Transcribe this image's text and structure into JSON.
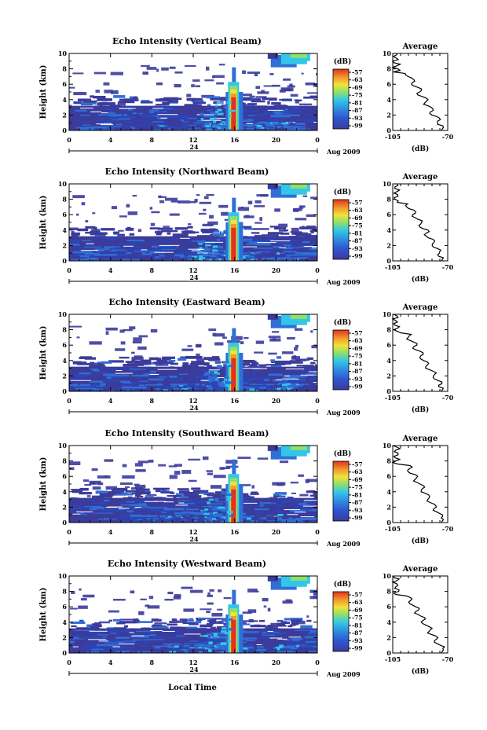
{
  "figure": {
    "xlabel": "Local Time",
    "date_label": "Aug 2009",
    "day_label": "24",
    "colorbar_unit": "(dB)",
    "avg_title": "Average",
    "avg_xlabel": "(dB)",
    "colors": {
      "low": "#3b3b9c",
      "blue": "#2f6fd6",
      "cyan": "#33c6e8",
      "green": "#8fe06a",
      "yellow": "#f2e23a",
      "orange": "#f39a2c",
      "red": "#e0321e"
    }
  },
  "chart_data": [
    {
      "type": "heatmap",
      "title": "Echo Intensity (Vertical Beam)",
      "ylabel": "Height (km)",
      "xlabel": "Local Time",
      "x_ticks": [
        "0",
        "4",
        "8",
        "12",
        "16",
        "20",
        "0"
      ],
      "y_ticks": [
        "0",
        "2",
        "4",
        "6",
        "8",
        "10"
      ],
      "xlim": [
        0,
        24
      ],
      "ylim": [
        0,
        10
      ],
      "colorbar_ticks": [
        "-57",
        "-63",
        "-69",
        "-75",
        "-81",
        "-87",
        "-93",
        "-99"
      ],
      "profile": {
        "title": "Average",
        "xlabel": "(dB)",
        "x_ticks": [
          "-105",
          "-70"
        ],
        "y_ticks": [
          "0",
          "2",
          "4",
          "6",
          "8",
          "10"
        ],
        "xlim": [
          -105,
          -70
        ],
        "ylim": [
          0,
          10
        ]
      }
    },
    {
      "type": "heatmap",
      "title": "Echo Intensity (Northward Beam)",
      "ylabel": "Height (km)",
      "xlabel": "Local Time",
      "x_ticks": [
        "0",
        "4",
        "8",
        "12",
        "16",
        "20",
        "0"
      ],
      "y_ticks": [
        "0",
        "2",
        "4",
        "6",
        "8",
        "10"
      ],
      "xlim": [
        0,
        24
      ],
      "ylim": [
        0,
        10
      ],
      "colorbar_ticks": [
        "-57",
        "-63",
        "-69",
        "-75",
        "-81",
        "-87",
        "-93",
        "-99"
      ],
      "profile": {
        "title": "Average",
        "xlabel": "(dB)",
        "x_ticks": [
          "-105",
          "-70"
        ],
        "y_ticks": [
          "0",
          "2",
          "4",
          "6",
          "8",
          "10"
        ],
        "xlim": [
          -105,
          -70
        ],
        "ylim": [
          0,
          10
        ]
      }
    },
    {
      "type": "heatmap",
      "title": "Echo Intensity (Eastward Beam)",
      "ylabel": "Height (km)",
      "xlabel": "Local Time",
      "x_ticks": [
        "0",
        "4",
        "8",
        "12",
        "16",
        "20",
        "0"
      ],
      "y_ticks": [
        "0",
        "2",
        "4",
        "6",
        "8",
        "10"
      ],
      "xlim": [
        0,
        24
      ],
      "ylim": [
        0,
        10
      ],
      "colorbar_ticks": [
        "-57",
        "-63",
        "-69",
        "-75",
        "-81",
        "-87",
        "-93",
        "-99"
      ],
      "profile": {
        "title": "Average",
        "xlabel": "(dB)",
        "x_ticks": [
          "-105",
          "-70"
        ],
        "y_ticks": [
          "0",
          "2",
          "4",
          "6",
          "8",
          "10"
        ],
        "xlim": [
          -105,
          -70
        ],
        "ylim": [
          0,
          10
        ]
      }
    },
    {
      "type": "heatmap",
      "title": "Echo Intensity (Southward Beam)",
      "ylabel": "Height (km)",
      "xlabel": "Local Time",
      "x_ticks": [
        "0",
        "4",
        "8",
        "12",
        "16",
        "20",
        "0"
      ],
      "y_ticks": [
        "0",
        "2",
        "4",
        "6",
        "8",
        "10"
      ],
      "xlim": [
        0,
        24
      ],
      "ylim": [
        0,
        10
      ],
      "colorbar_ticks": [
        "-57",
        "-63",
        "-69",
        "-75",
        "-81",
        "-87",
        "-93",
        "-99"
      ],
      "profile": {
        "title": "Average",
        "xlabel": "(dB)",
        "x_ticks": [
          "-105",
          "-70"
        ],
        "y_ticks": [
          "0",
          "2",
          "4",
          "6",
          "8",
          "10"
        ],
        "xlim": [
          -105,
          -70
        ],
        "ylim": [
          0,
          10
        ]
      }
    },
    {
      "type": "heatmap",
      "title": "Echo Intensity (Westward Beam)",
      "ylabel": "Height (km)",
      "xlabel": "Local Time",
      "x_ticks": [
        "0",
        "4",
        "8",
        "12",
        "16",
        "20",
        "0"
      ],
      "y_ticks": [
        "0",
        "2",
        "4",
        "6",
        "8",
        "10"
      ],
      "xlim": [
        0,
        24
      ],
      "ylim": [
        0,
        10
      ],
      "colorbar_ticks": [
        "-57",
        "-63",
        "-69",
        "-75",
        "-81",
        "-87",
        "-93",
        "-99"
      ],
      "profile": {
        "title": "Average",
        "xlabel": "(dB)",
        "x_ticks": [
          "-105",
          "-70"
        ],
        "y_ticks": [
          "0",
          "2",
          "4",
          "6",
          "8",
          "10"
        ],
        "xlim": [
          -105,
          -70
        ],
        "ylim": [
          0,
          10
        ]
      }
    }
  ]
}
